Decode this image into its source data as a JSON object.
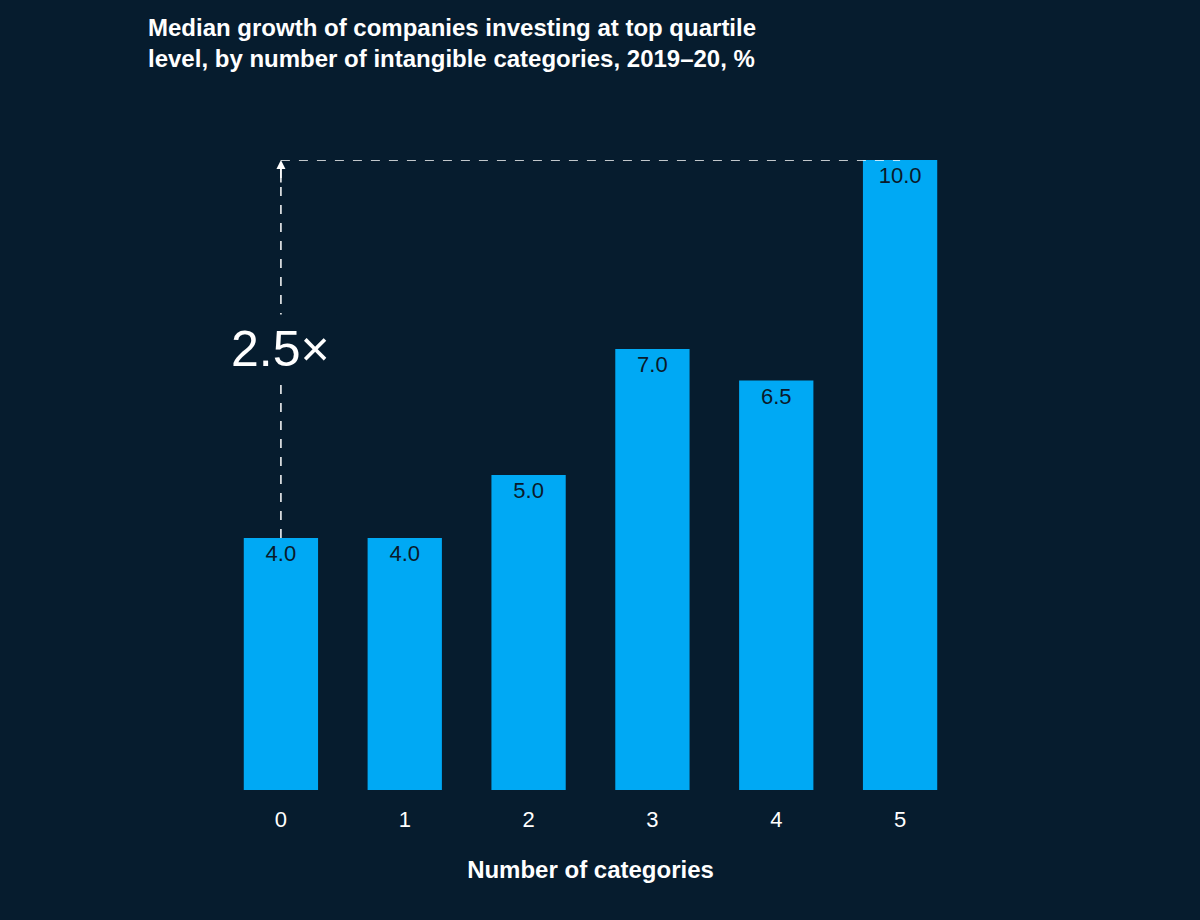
{
  "chart_data": {
    "type": "bar",
    "title": "Median growth of companies investing at top quartile level, by number of intangible categories, 2019–20, %",
    "x_label": "Number of categories",
    "categories": [
      "0",
      "1",
      "2",
      "3",
      "4",
      "5"
    ],
    "values": [
      4.0,
      4.0,
      5.0,
      7.0,
      6.5,
      10.0
    ],
    "value_labels": [
      "4.0",
      "4.0",
      "5.0",
      "7.0",
      "6.5",
      "10.0"
    ],
    "color": "#00a9f4",
    "ylim": [
      0,
      10
    ],
    "grid": false,
    "data_labels": true,
    "tick_labels": "x",
    "annotations": [
      {
        "text": "2.5×"
      }
    ]
  }
}
